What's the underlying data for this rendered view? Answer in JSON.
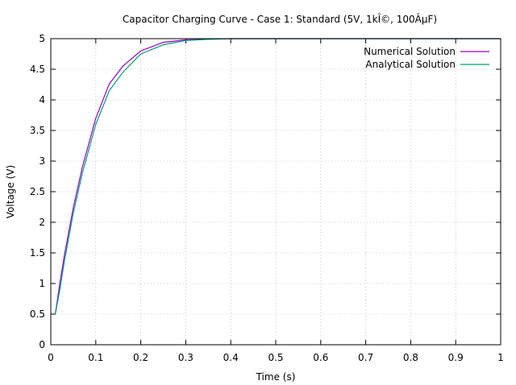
{
  "chart_data": {
    "type": "line",
    "title": "Capacitor Charging Curve - Case 1: Standard (5V, 1kÎ©, 100ÂµF)",
    "xlabel": "Time (s)",
    "ylabel": "Voltage (V)",
    "xlim": [
      0,
      1
    ],
    "ylim": [
      0,
      5
    ],
    "xticks": [
      "0",
      "0.1",
      "0.2",
      "0.3",
      "0.4",
      "0.5",
      "0.6",
      "0.7",
      "0.8",
      "0.9",
      "1"
    ],
    "yticks": [
      "0",
      "0.5",
      "1",
      "1.5",
      "2",
      "2.5",
      "3",
      "3.5",
      "4",
      "4.5",
      "5"
    ],
    "grid": true,
    "legend_position": "top-right",
    "series": [
      {
        "name": "Numerical Solution",
        "color": "#9400d3",
        "x": [
          0.01,
          0.02,
          0.03,
          0.05,
          0.07,
          0.1,
          0.13,
          0.16,
          0.2,
          0.25,
          0.3,
          0.35,
          0.4,
          0.45,
          0.5,
          0.55,
          0.6,
          0.7,
          0.8,
          0.9,
          1.0
        ],
        "y": [
          0.5,
          1.0,
          1.45,
          2.24,
          2.9,
          3.7,
          4.26,
          4.55,
          4.8,
          4.94,
          4.98,
          4.99,
          5.0,
          5.0,
          5.0,
          5.0,
          5.0,
          5.0,
          5.0,
          5.0,
          5.0
        ]
      },
      {
        "name": "Analytical Solution",
        "color": "#009e73",
        "x": [
          0.01,
          0.02,
          0.03,
          0.05,
          0.07,
          0.1,
          0.13,
          0.16,
          0.2,
          0.25,
          0.3,
          0.35,
          0.4,
          0.45,
          0.5,
          0.55,
          0.6,
          0.7,
          0.8,
          0.9,
          1.0
        ],
        "y": [
          0.5,
          0.9,
          1.35,
          2.15,
          2.8,
          3.6,
          4.15,
          4.45,
          4.75,
          4.9,
          4.97,
          4.99,
          5.0,
          5.0,
          5.0,
          5.0,
          5.0,
          5.0,
          5.0,
          5.0,
          5.0
        ]
      }
    ]
  }
}
